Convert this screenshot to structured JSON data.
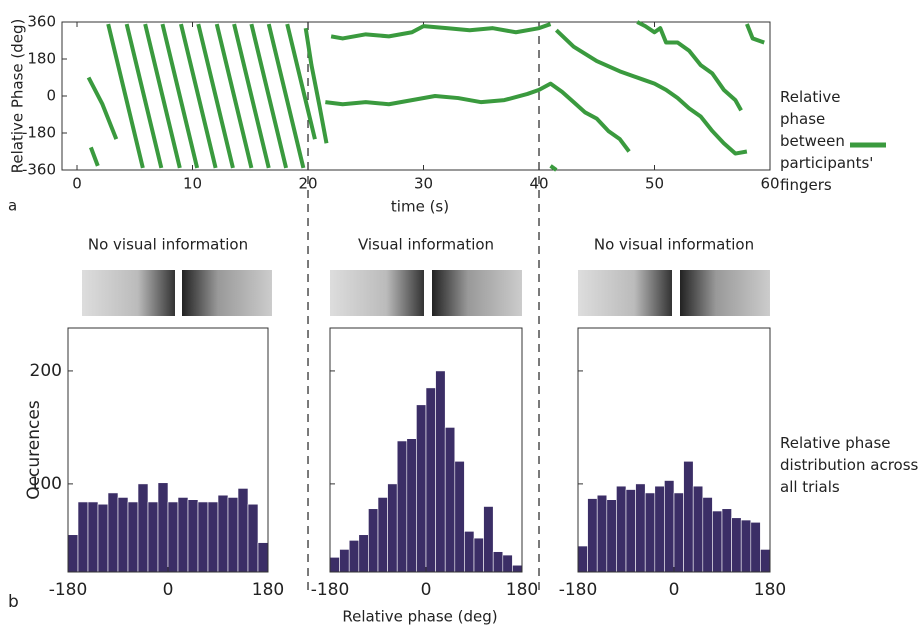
{
  "chart_data": [
    {
      "type": "line",
      "panel": "a",
      "ylabel": "Relative Phase (deg)",
      "xlabel": "time (s)",
      "xlim": [
        -1.3,
        60
      ],
      "ylim": [
        -360,
        360
      ],
      "xticks": [
        0,
        10,
        20,
        30,
        40,
        50,
        60
      ],
      "yticks": [
        -360,
        -180,
        0,
        180,
        360
      ],
      "vlines": [
        20,
        40
      ],
      "series": [
        {
          "name": "Relative phase between participants' fingers",
          "color": "#3a9a3e",
          "x": [
            1,
            2.2,
            3.4,
            null,
            1.2,
            1.8,
            null,
            2.7,
            4.2,
            5.7,
            null,
            4.3,
            5.8,
            7.3,
            null,
            5.9,
            7.4,
            8.9,
            null,
            7.4,
            8.9,
            10.4,
            null,
            9.0,
            10.5,
            12.0,
            null,
            10.5,
            12.0,
            13.5,
            null,
            12.1,
            13.6,
            15.1,
            null,
            13.6,
            15.1,
            16.6,
            null,
            15.1,
            16.6,
            18.1,
            null,
            16.6,
            18.1,
            19.6,
            null,
            18.2,
            19.7,
            20.6,
            null,
            19.8,
            20.3,
            21.0,
            21.6,
            null,
            22,
            23,
            25,
            27,
            29,
            30,
            32,
            34,
            36,
            38,
            40,
            41,
            null,
            21.5,
            23,
            25,
            27,
            29,
            31,
            33,
            35,
            37,
            39,
            40,
            41,
            42,
            43,
            44,
            45,
            46,
            47,
            47.8,
            null,
            41.5,
            43,
            45,
            47,
            49,
            50,
            51,
            52,
            53,
            54,
            55,
            56,
            57,
            58,
            null,
            48.5,
            49.2,
            50,
            50.5,
            51,
            52,
            53,
            54,
            55,
            56,
            57,
            57.5,
            null,
            58,
            58.5,
            59.5,
            null,
            41,
            41.5
          ],
          "values": [
            90,
            -40,
            -210,
            null,
            -250,
            -340,
            null,
            350,
            0,
            -350,
            null,
            350,
            0,
            -350,
            null,
            350,
            0,
            -350,
            null,
            350,
            0,
            -350,
            null,
            350,
            0,
            -350,
            null,
            350,
            0,
            -350,
            null,
            350,
            0,
            -350,
            null,
            350,
            0,
            -350,
            null,
            350,
            0,
            -350,
            null,
            350,
            0,
            -350,
            null,
            350,
            0,
            -210,
            null,
            330,
            150,
            -50,
            -230,
            null,
            290,
            280,
            300,
            290,
            310,
            340,
            330,
            320,
            330,
            310,
            330,
            350,
            null,
            -30,
            -40,
            -30,
            -40,
            -20,
            0,
            -10,
            -30,
            -20,
            10,
            30,
            60,
            20,
            -30,
            -80,
            -110,
            -170,
            -210,
            -270,
            null,
            320,
            240,
            170,
            120,
            80,
            60,
            30,
            -10,
            -60,
            -100,
            -170,
            -230,
            -280,
            -270,
            null,
            360,
            340,
            310,
            330,
            260,
            260,
            220,
            150,
            110,
            30,
            -20,
            -70,
            null,
            350,
            280,
            260,
            null,
            -340,
            -360
          ]
        }
      ]
    },
    {
      "type": "histogram",
      "panel": "b",
      "title": "No visual information",
      "ylabel": "Occurences",
      "bins": [
        -180,
        -162,
        -144,
        -126,
        -108,
        -90,
        -72,
        -54,
        -36,
        -18,
        0,
        18,
        36,
        54,
        72,
        90,
        108,
        126,
        144,
        162,
        180
      ],
      "values": [
        55,
        84,
        84,
        82,
        92,
        88,
        84,
        100,
        84,
        101,
        84,
        88,
        86,
        84,
        84,
        90,
        88,
        96,
        82,
        48
      ],
      "color": "#3b2e66",
      "xlim": [
        -180,
        180
      ],
      "ylim": [
        22,
        238
      ],
      "xticks": [
        -180,
        0,
        180
      ],
      "yticks": [
        100,
        200
      ]
    },
    {
      "type": "histogram",
      "title": "Visual information",
      "xlabel": "Relative phase (deg)",
      "bins": [
        -180,
        -162,
        -144,
        -126,
        -108,
        -90,
        -72,
        -54,
        -36,
        -18,
        0,
        18,
        36,
        54,
        72,
        90,
        108,
        126,
        144,
        162,
        180
      ],
      "values": [
        35,
        42,
        50,
        55,
        78,
        88,
        100,
        138,
        140,
        170,
        185,
        200,
        150,
        120,
        58,
        52,
        80,
        40,
        37,
        28
      ],
      "color": "#3b2e66",
      "xlim": [
        -180,
        180
      ],
      "ylim": [
        22,
        238
      ],
      "xticks": [
        -180,
        0,
        180
      ],
      "yticks": [
        100,
        200
      ]
    },
    {
      "type": "histogram",
      "title": "No visual information",
      "annotation": "Relative phase distribution across all trials",
      "bins": [
        -180,
        -162,
        -144,
        -126,
        -108,
        -90,
        -72,
        -54,
        -36,
        -18,
        0,
        18,
        36,
        54,
        72,
        90,
        108,
        126,
        144,
        162,
        180
      ],
      "values": [
        45,
        87,
        90,
        86,
        98,
        95,
        100,
        92,
        98,
        103,
        92,
        120,
        98,
        88,
        76,
        78,
        70,
        68,
        66,
        42
      ],
      "color": "#3b2e66",
      "xlim": [
        -180,
        180
      ],
      "ylim": [
        22,
        238
      ],
      "xticks": [
        -180,
        0,
        180
      ],
      "yticks": [
        100,
        200
      ]
    }
  ]
}
